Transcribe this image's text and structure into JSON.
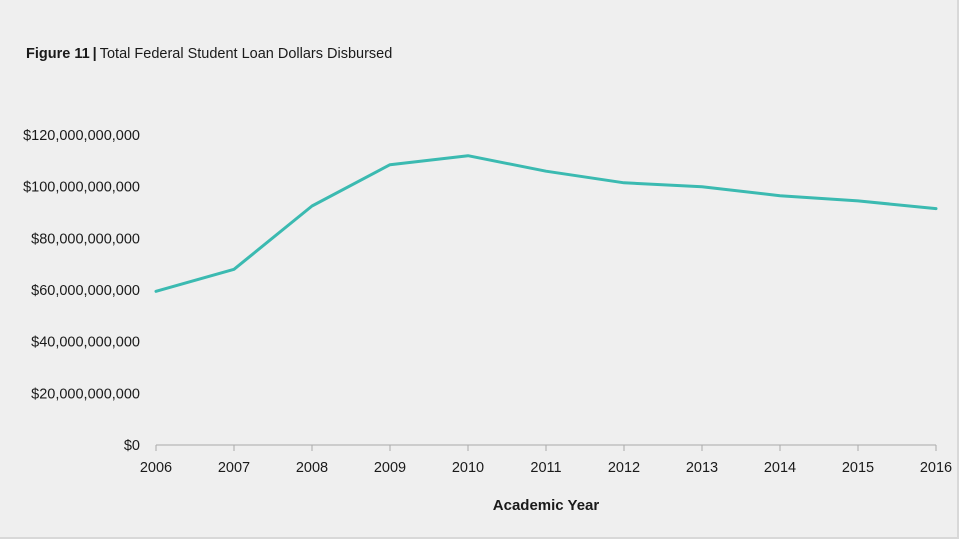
{
  "figure": {
    "label": "Figure 11",
    "separator": "|",
    "title": "Total Federal Student Loan Dollars Disbursed"
  },
  "chart_data": {
    "type": "line",
    "title": "Total Federal Student Loan Dollars Disbursed",
    "xlabel": "Academic Year",
    "ylabel": "",
    "x": [
      "2006",
      "2007",
      "2008",
      "2009",
      "2010",
      "2011",
      "2012",
      "2013",
      "2014",
      "2015",
      "2016"
    ],
    "series": [
      {
        "name": "Total Federal Student Loan Dollars Disbursed",
        "color": "#3bbab1",
        "values": [
          59500000000,
          68000000000,
          92500000000,
          108500000000,
          112000000000,
          106000000000,
          101500000000,
          100000000000,
          96500000000,
          94500000000,
          91500000000
        ]
      }
    ],
    "ylim": [
      0,
      120000000000
    ],
    "yticks": [
      0,
      20000000000,
      40000000000,
      60000000000,
      80000000000,
      100000000000,
      120000000000
    ],
    "ytick_labels": [
      "$0",
      "$20,000,000,000",
      "$40,000,000,000",
      "$60,000,000,000",
      "$80,000,000,000",
      "$100,000,000,000",
      "$120,000,000,000"
    ],
    "grid": false,
    "legend": "none"
  }
}
